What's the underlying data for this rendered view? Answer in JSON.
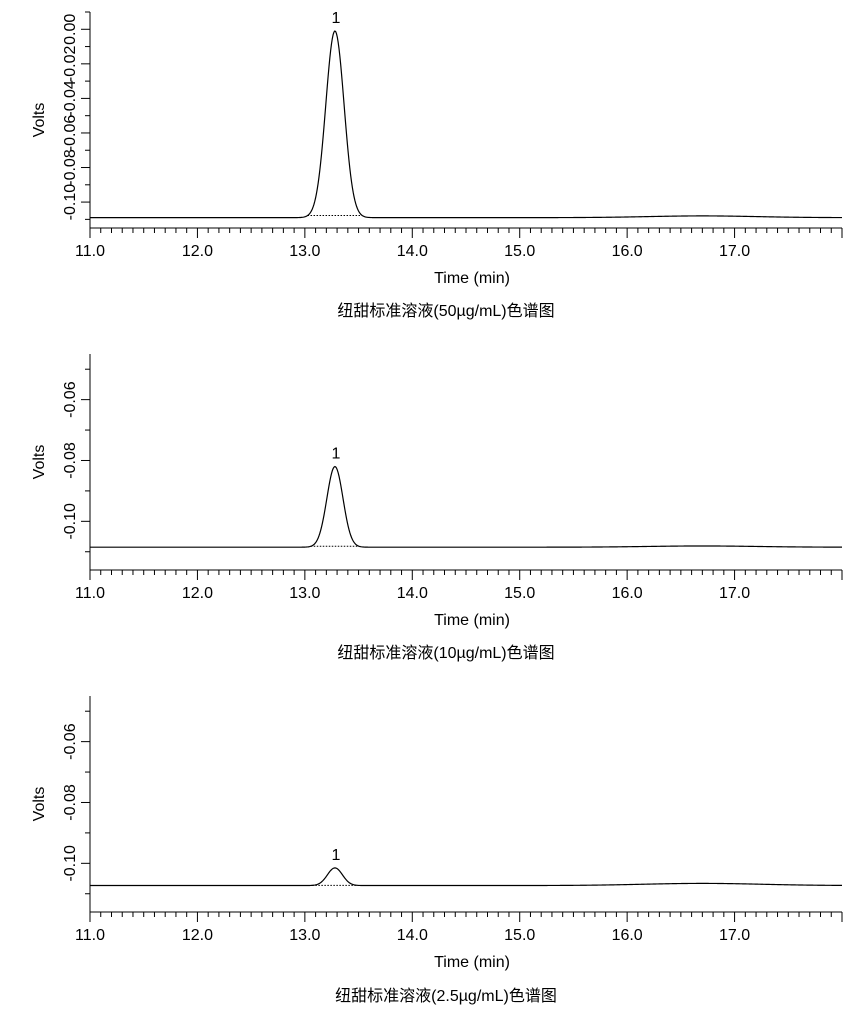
{
  "chart_data": [
    {
      "type": "line",
      "caption": "纽甜标准溶液(50µg/mL)色谱图",
      "xlabel": "Time (min)",
      "ylabel": "Volts",
      "xlim": [
        11.0,
        18.0
      ],
      "x_ticks": [
        "11.0",
        "12.0",
        "13.0",
        "14.0",
        "15.0",
        "16.0",
        "17.0"
      ],
      "ylim": [
        -0.115,
        0.01
      ],
      "y_ticks": [
        "0.00",
        "-0.02",
        "-0.04",
        "-0.06",
        "-0.08",
        "-0.10"
      ],
      "baseline": -0.109,
      "drift": {
        "x": 16.7,
        "height": 0.001,
        "width": 0.5
      },
      "peaks": [
        {
          "label": "1",
          "x": 13.28,
          "height": 0.108,
          "width": 0.085
        }
      ],
      "grid": false
    },
    {
      "type": "line",
      "caption": "纽甜标准溶液(10µg/mL)色谱图",
      "xlabel": "Time (min)",
      "ylabel": "Volts",
      "xlim": [
        11.0,
        18.0
      ],
      "x_ticks": [
        "11.0",
        "12.0",
        "13.0",
        "14.0",
        "15.0",
        "16.0",
        "17.0"
      ],
      "ylim": [
        -0.116,
        -0.045
      ],
      "y_ticks": [
        "-0.06",
        "-0.08",
        "-0.10"
      ],
      "baseline": -0.1085,
      "drift": {
        "x": 16.7,
        "height": 0.0004,
        "width": 0.5
      },
      "peaks": [
        {
          "label": "1",
          "x": 13.28,
          "height": 0.0265,
          "width": 0.075
        }
      ],
      "grid": false
    },
    {
      "type": "line",
      "caption": "纽甜标准溶液(2.5µg/mL)色谱图",
      "xlabel": "Time (min)",
      "ylabel": "Volts",
      "xlim": [
        11.0,
        18.0
      ],
      "x_ticks": [
        "11.0",
        "12.0",
        "13.0",
        "14.0",
        "15.0",
        "16.0",
        "17.0"
      ],
      "ylim": [
        -0.116,
        -0.045
      ],
      "y_ticks": [
        "-0.06",
        "-0.08",
        "-0.10"
      ],
      "baseline": -0.1073,
      "drift": {
        "x": 16.7,
        "height": 0.0007,
        "width": 0.55
      },
      "peaks": [
        {
          "label": "1",
          "x": 13.28,
          "height": 0.0058,
          "width": 0.07
        }
      ],
      "grid": false
    }
  ]
}
